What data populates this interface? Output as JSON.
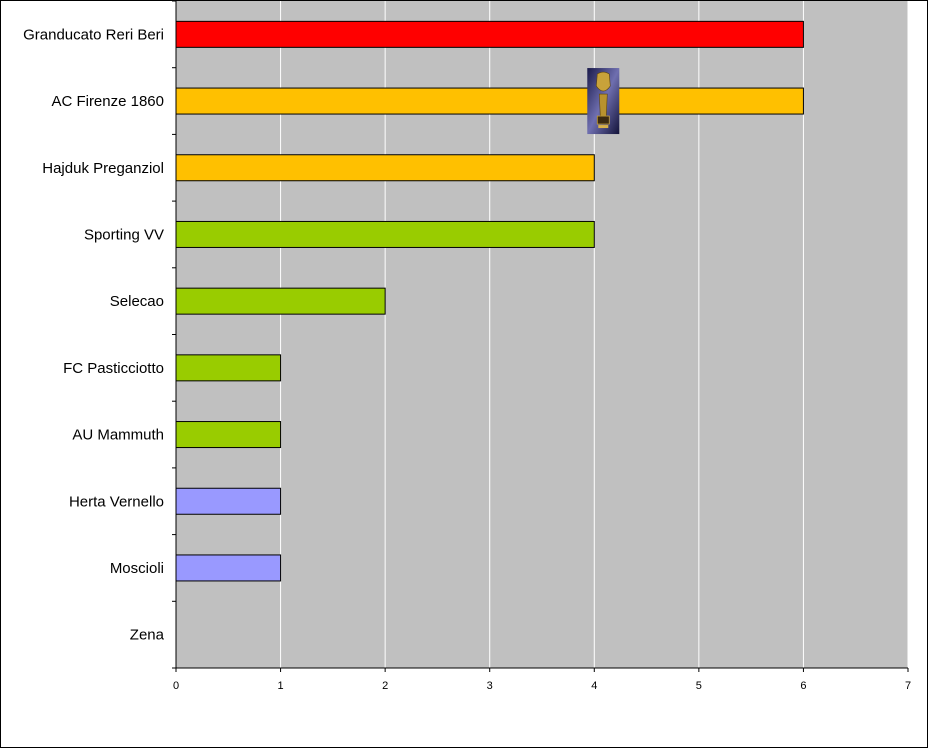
{
  "chart_data": {
    "type": "bar",
    "orientation": "horizontal",
    "categories": [
      "Granducato Reri Beri",
      "AC Firenze 1860",
      "Hajduk Preganziol",
      "Sporting VV",
      "Selecao",
      "FC Pasticciotto",
      "AU Mammuth",
      "Herta Vernello",
      "Moscioli",
      "Zena"
    ],
    "values": [
      6,
      6,
      4,
      4,
      2,
      1,
      1,
      1,
      1,
      0
    ],
    "bar_colors": [
      "#ff0000",
      "#ffc000",
      "#ffc000",
      "#99cc00",
      "#99cc00",
      "#99cc00",
      "#99cc00",
      "#9999ff",
      "#9999ff",
      "#9999ff"
    ],
    "xlim": [
      0,
      7
    ],
    "x_ticks": [
      "0",
      "1",
      "2",
      "3",
      "4",
      "5",
      "6",
      "7"
    ],
    "title": "",
    "xlabel": "",
    "ylabel": "",
    "grid": "vertical",
    "legend": "none",
    "plot_background": "#c0c0c0",
    "gridline_color": "#ffffff",
    "trophy_icon": "world-cup-trophy-icon",
    "trophy_category": "AC Firenze 1860"
  }
}
